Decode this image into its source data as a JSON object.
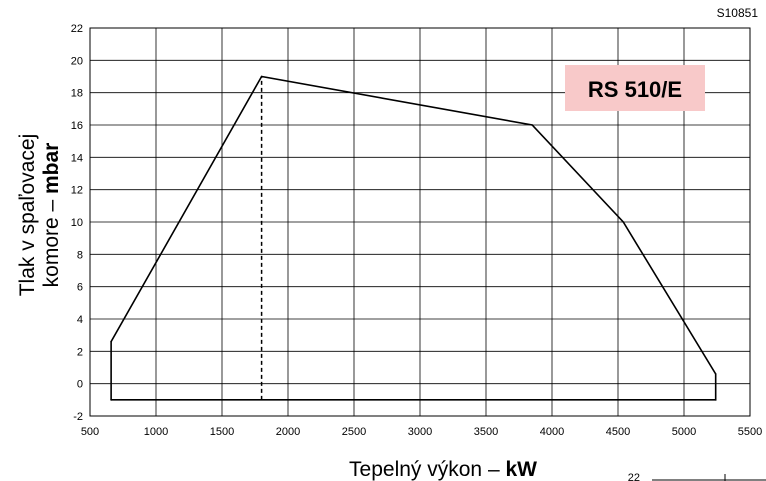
{
  "document_code": "S10851",
  "chart_data": {
    "type": "line",
    "title": "",
    "model_label": "RS 510/E",
    "label_bg_color": "#f8c9c9",
    "xlabel": {
      "text": "Tepelný výkon – ",
      "unit": "kW"
    },
    "ylabel": {
      "line1": "Tlak v spaľovacej",
      "line2": "komore – ",
      "unit": "mbar"
    },
    "xlim": [
      500,
      5500
    ],
    "ylim": [
      -2,
      22
    ],
    "xticks": [
      500,
      1000,
      1500,
      2000,
      2500,
      3000,
      3500,
      4000,
      4500,
      5000,
      5500
    ],
    "yticks": [
      -2,
      0,
      2,
      4,
      6,
      8,
      10,
      12,
      14,
      16,
      18,
      20,
      22
    ],
    "grid": true,
    "series": [
      {
        "points": [
          {
            "x": 660,
            "y": -1
          },
          {
            "x": 660,
            "y": 2.6
          },
          {
            "x": 1800,
            "y": 19
          },
          {
            "x": 3850,
            "y": 16
          },
          {
            "x": 4540,
            "y": 10
          },
          {
            "x": 5240,
            "y": 0.6
          },
          {
            "x": 5240,
            "y": -1
          },
          {
            "x": 660,
            "y": -1
          }
        ]
      }
    ],
    "reference_line": {
      "x": 1800,
      "y_from": -1,
      "y_to": 19,
      "style": "dashed"
    }
  },
  "inset_fragment": {
    "tick_label": "22"
  }
}
